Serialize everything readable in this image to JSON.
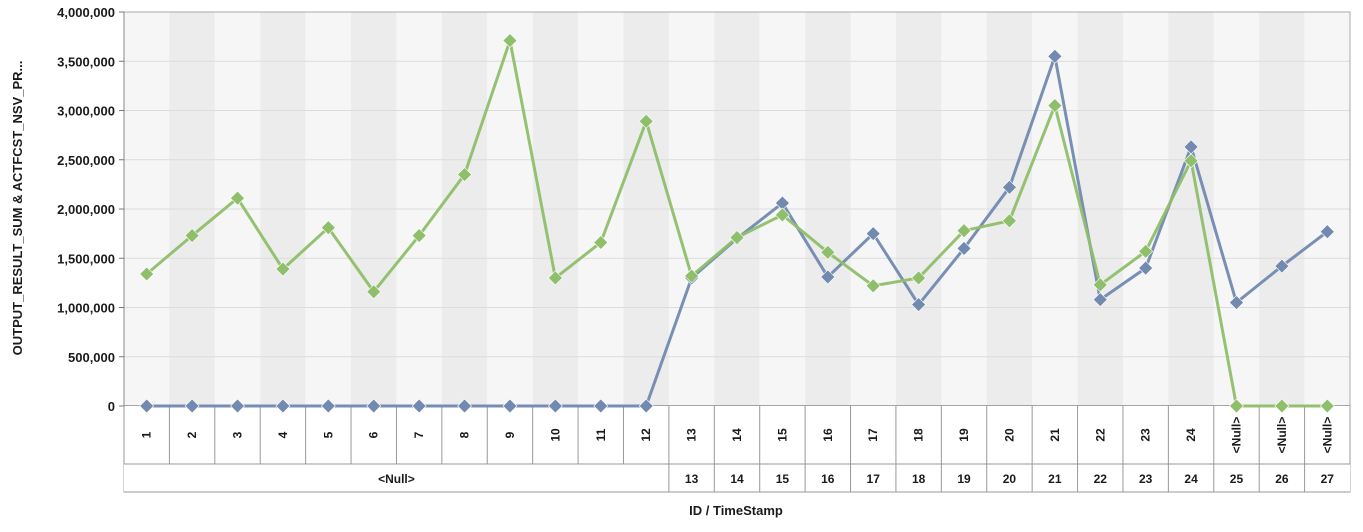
{
  "chart_data": {
    "type": "line",
    "xlabel": "ID / TimeStamp",
    "ylabel": "OUTPUT_RESULT_SUM & ACTFCST_NSV_PR...",
    "ylim": [
      0,
      4000000
    ],
    "yticks": [
      "0",
      "500,000",
      "1,000,000",
      "1,500,000",
      "2,000,000",
      "2,500,000",
      "3,000,000",
      "3,500,000",
      "4,000,000"
    ],
    "categories": [
      "1",
      "2",
      "3",
      "4",
      "5",
      "6",
      "7",
      "8",
      "9",
      "10",
      "11",
      "12",
      "13",
      "14",
      "15",
      "16",
      "17",
      "18",
      "19",
      "20",
      "21",
      "22",
      "23",
      "24",
      "<Null>",
      "<Null>",
      "<Null>"
    ],
    "timestamp_groups": [
      {
        "label": "<Null>",
        "span": 12
      },
      {
        "label": "13",
        "span": 1
      },
      {
        "label": "14",
        "span": 1
      },
      {
        "label": "15",
        "span": 1
      },
      {
        "label": "16",
        "span": 1
      },
      {
        "label": "17",
        "span": 1
      },
      {
        "label": "18",
        "span": 1
      },
      {
        "label": "19",
        "span": 1
      },
      {
        "label": "20",
        "span": 1
      },
      {
        "label": "21",
        "span": 1
      },
      {
        "label": "22",
        "span": 1
      },
      {
        "label": "23",
        "span": 1
      },
      {
        "label": "24",
        "span": 1
      },
      {
        "label": "25",
        "span": 1
      },
      {
        "label": "26",
        "span": 1
      },
      {
        "label": "27",
        "span": 1
      }
    ],
    "series": [
      {
        "color": "#7289b0",
        "values": [
          0,
          0,
          0,
          0,
          0,
          0,
          0,
          0,
          0,
          0,
          0,
          0,
          1300000,
          1700000,
          2060000,
          1310000,
          1750000,
          1030000,
          1600000,
          2220000,
          3550000,
          1080000,
          1400000,
          2630000,
          1050000,
          1420000,
          1770000
        ]
      },
      {
        "color": "#8fbf6a",
        "values": [
          1340000,
          1730000,
          2110000,
          1390000,
          1810000,
          1160000,
          1730000,
          2350000,
          3710000,
          1300000,
          1660000,
          2890000,
          1320000,
          1710000,
          1940000,
          1560000,
          1220000,
          1300000,
          1780000,
          1880000,
          3050000,
          1230000,
          1570000,
          2490000,
          0,
          0,
          0
        ]
      }
    ],
    "grid": true,
    "legend": "none"
  }
}
